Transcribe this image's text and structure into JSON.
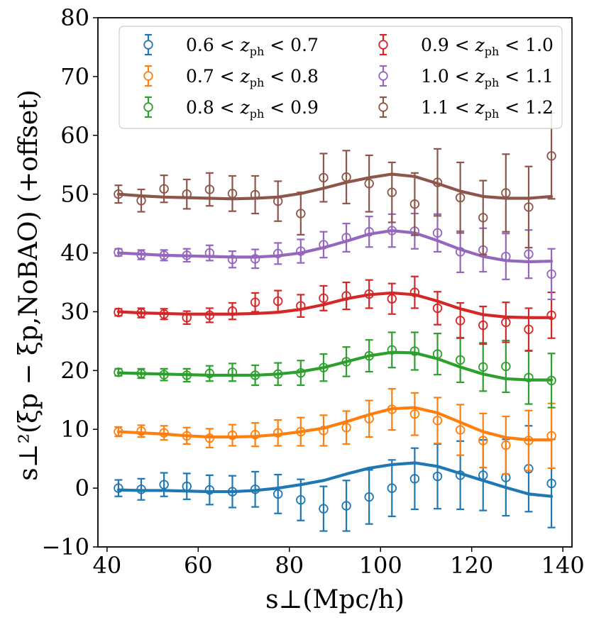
{
  "chart_data": {
    "type": "scatter",
    "title": "",
    "xlabel": "s⊥(Mpc/h)",
    "ylabel": "s⊥²(ξp − ξp,NoBAO) (+offset)",
    "xlim": [
      38,
      142
    ],
    "ylim": [
      -10,
      80
    ],
    "xticks": [
      40,
      60,
      80,
      100,
      120,
      140
    ],
    "yticks": [
      -10,
      0,
      10,
      20,
      30,
      40,
      50,
      60,
      70,
      80
    ],
    "xtick_labels": [
      "40",
      "60",
      "80",
      "100",
      "120",
      "140"
    ],
    "ytick_labels": [
      "−10",
      "0",
      "10",
      "20",
      "30",
      "40",
      "50",
      "60",
      "70",
      "80"
    ],
    "grid": false,
    "legend_position": "top",
    "x": [
      42.5,
      47.5,
      52.5,
      57.5,
      62.5,
      67.5,
      72.5,
      77.5,
      82.5,
      87.5,
      92.5,
      97.5,
      102.5,
      107.5,
      112.5,
      117.5,
      122.5,
      127.5,
      132.5,
      137.5
    ],
    "series": [
      {
        "name": "0.6 < z_ph < 0.7",
        "legend": {
          "pre": "0.6 < ",
          "var": "z",
          "sub": "ph",
          "post": " < 0.7"
        },
        "color": "#1f77b4",
        "values": [
          0.0,
          -0.2,
          0.6,
          0.3,
          -0.3,
          -0.6,
          -0.2,
          -1.0,
          -2.0,
          -3.5,
          -3.0,
          -1.5,
          0.0,
          1.6,
          2.0,
          2.2,
          2.2,
          1.8,
          3.3,
          0.8
        ],
        "errors": [
          1.4,
          1.8,
          2.0,
          2.2,
          2.5,
          2.7,
          3.0,
          3.3,
          3.5,
          3.8,
          4.3,
          4.6,
          4.8,
          5.2,
          5.5,
          5.8,
          6.0,
          6.5,
          7.3,
          7.5
        ],
        "model": [
          -0.3,
          -0.4,
          -0.4,
          -0.5,
          -0.6,
          -0.6,
          -0.4,
          0.0,
          0.6,
          1.3,
          2.4,
          3.4,
          4.0,
          4.3,
          3.7,
          2.5,
          1.3,
          0.1,
          -1.0,
          -1.4
        ]
      },
      {
        "name": "0.7 < z_ph < 0.8",
        "legend": {
          "pre": "0.7 < ",
          "var": "z",
          "sub": "ph",
          "post": " < 0.8"
        },
        "color": "#ff7f0e",
        "values": [
          9.6,
          9.7,
          9.4,
          8.9,
          8.5,
          9.0,
          9.1,
          9.4,
          9.6,
          9.8,
          10.3,
          11.8,
          13.4,
          12.6,
          11.5,
          9.9,
          8.1,
          7.3,
          8.1,
          8.9
        ],
        "errors": [
          0.8,
          1.0,
          1.2,
          1.4,
          1.6,
          1.8,
          2.0,
          2.2,
          2.4,
          2.6,
          2.8,
          3.1,
          3.5,
          3.6,
          3.9,
          4.3,
          4.6,
          4.9,
          5.1,
          5.5
        ],
        "model": [
          9.6,
          9.4,
          9.2,
          8.9,
          8.7,
          8.7,
          8.8,
          9.1,
          9.6,
          10.2,
          11.3,
          12.5,
          13.5,
          13.7,
          12.8,
          11.2,
          9.6,
          8.6,
          8.2,
          8.2
        ]
      },
      {
        "name": "0.8 < z_ph < 0.9",
        "legend": {
          "pre": "0.8 < ",
          "var": "z",
          "sub": "ph",
          "post": " < 0.9"
        },
        "color": "#2ca02c",
        "values": [
          19.7,
          19.5,
          19.3,
          19.2,
          19.5,
          19.7,
          19.2,
          19.4,
          19.6,
          20.5,
          21.5,
          22.5,
          23.5,
          23.3,
          22.8,
          21.8,
          20.6,
          20.7,
          18.8,
          18.3
        ],
        "errors": [
          0.6,
          0.8,
          1.0,
          1.1,
          1.3,
          1.5,
          1.7,
          1.9,
          2.1,
          2.3,
          2.5,
          2.7,
          3.0,
          3.2,
          3.5,
          3.8,
          4.1,
          4.4,
          4.5,
          4.6
        ],
        "model": [
          19.6,
          19.5,
          19.4,
          19.3,
          19.2,
          19.2,
          19.2,
          19.4,
          19.8,
          20.5,
          21.5,
          22.5,
          23.1,
          23.0,
          22.0,
          20.6,
          19.4,
          18.6,
          18.4,
          18.4
        ]
      },
      {
        "name": "0.9 < z_ph < 1.0",
        "legend": {
          "pre": "0.9 < ",
          "var": "z",
          "sub": "ph",
          "post": " < 1.0"
        },
        "color": "#d62728",
        "values": [
          29.9,
          29.8,
          29.6,
          29.0,
          29.4,
          30.1,
          31.6,
          31.8,
          31.0,
          32.3,
          32.7,
          33.0,
          32.2,
          33.3,
          30.6,
          28.5,
          27.7,
          28.2,
          27.0,
          29.4
        ],
        "errors": [
          0.6,
          0.8,
          0.9,
          1.1,
          1.2,
          1.4,
          1.6,
          1.8,
          1.9,
          2.1,
          2.3,
          2.4,
          2.6,
          2.7,
          2.8,
          3.0,
          3.2,
          3.4,
          3.6,
          3.9
        ],
        "model": [
          30.0,
          29.8,
          29.7,
          29.6,
          29.6,
          29.6,
          29.7,
          29.9,
          30.4,
          31.2,
          32.2,
          32.9,
          33.2,
          32.9,
          31.8,
          30.5,
          29.5,
          29.1,
          29.0,
          29.0
        ]
      },
      {
        "name": "1.0 < z_ph < 1.1",
        "legend": {
          "pre": "1.0 < ",
          "var": "z",
          "sub": "ph",
          "post": " < 1.1"
        },
        "color": "#9467bd",
        "values": [
          40.1,
          39.7,
          39.6,
          39.6,
          40.0,
          38.9,
          39.0,
          39.9,
          40.3,
          41.4,
          42.6,
          43.6,
          43.8,
          43.7,
          43.4,
          40.2,
          40.5,
          39.4,
          39.8,
          36.4
        ],
        "errors": [
          0.6,
          0.8,
          0.9,
          1.1,
          1.3,
          1.4,
          1.6,
          1.8,
          2.0,
          2.2,
          2.4,
          2.6,
          2.8,
          3.0,
          3.2,
          3.5,
          3.7,
          3.9,
          4.1,
          4.3
        ],
        "model": [
          40.0,
          39.8,
          39.6,
          39.5,
          39.4,
          39.3,
          39.3,
          39.5,
          40.0,
          40.9,
          42.0,
          43.2,
          43.8,
          43.4,
          42.1,
          40.6,
          39.4,
          38.7,
          38.5,
          38.6
        ]
      },
      {
        "name": "1.1 < z_ph < 1.2",
        "legend": {
          "pre": "1.1 < ",
          "var": "z",
          "sub": "ph",
          "post": " < 1.2"
        },
        "color": "#8c564b",
        "values": [
          50.0,
          48.9,
          50.9,
          50.0,
          50.8,
          50.1,
          49.9,
          48.8,
          46.7,
          52.8,
          52.9,
          51.8,
          50.3,
          48.3,
          52.0,
          49.4,
          46.0,
          50.2,
          47.8,
          56.5
        ],
        "errors": [
          1.5,
          1.9,
          2.3,
          2.5,
          2.8,
          3.0,
          3.2,
          3.4,
          3.6,
          4.1,
          4.5,
          4.8,
          5.1,
          5.3,
          5.7,
          6.0,
          6.3,
          6.6,
          6.9,
          7.3
        ],
        "model": [
          50.0,
          49.7,
          49.5,
          49.4,
          49.3,
          49.2,
          49.3,
          49.5,
          50.1,
          51.0,
          52.0,
          52.8,
          53.4,
          53.0,
          51.8,
          50.5,
          49.6,
          49.3,
          49.3,
          49.6
        ]
      }
    ]
  }
}
